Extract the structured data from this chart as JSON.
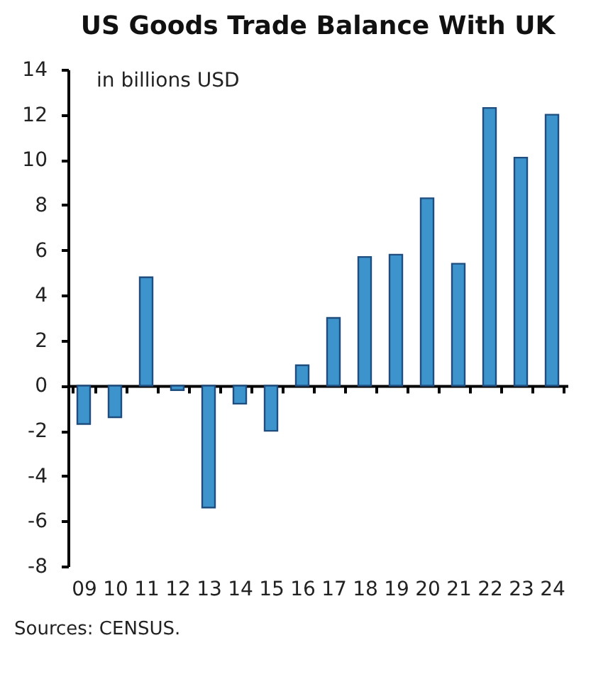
{
  "chart_data": {
    "type": "bar",
    "title": "US Goods Trade Balance With UK",
    "subtitle": "in billions USD",
    "categories": [
      "09",
      "10",
      "11",
      "12",
      "13",
      "14",
      "15",
      "16",
      "17",
      "18",
      "19",
      "20",
      "21",
      "22",
      "23",
      "24"
    ],
    "values": [
      -1.7,
      -1.4,
      4.8,
      -0.2,
      -5.4,
      -0.8,
      -2.0,
      0.9,
      3.0,
      5.7,
      5.8,
      8.3,
      5.4,
      12.3,
      10.1,
      12.0
    ],
    "color": "#3d94cc",
    "ylim": [
      -8,
      14
    ],
    "yticks": [
      -8,
      -6,
      -4,
      -2,
      0,
      2,
      4,
      6,
      8,
      10,
      12,
      14
    ],
    "annotations": [
      "Sources: CENSUS."
    ]
  }
}
